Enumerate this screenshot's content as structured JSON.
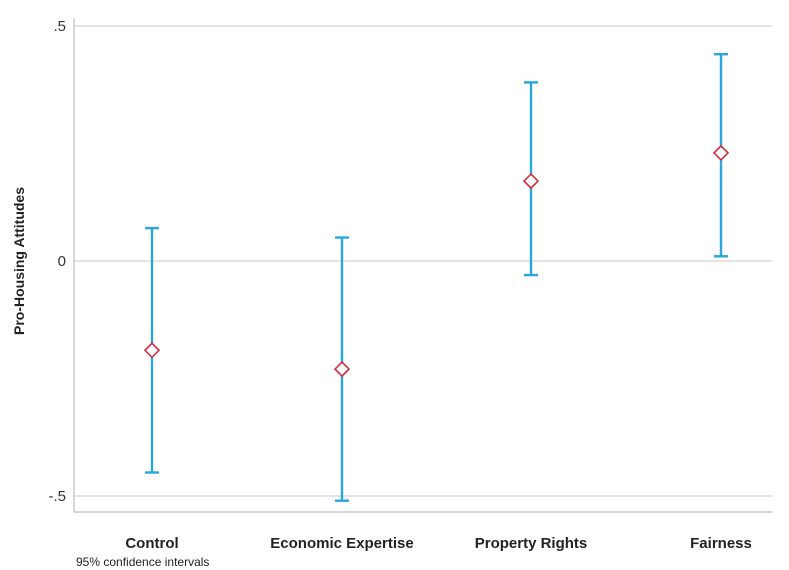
{
  "chart_data": {
    "type": "scatter",
    "subtype": "point estimates with 95% confidence interval error bars",
    "categories": [
      "Control",
      "Economic Expertise",
      "Property Rights",
      "Fairness"
    ],
    "estimates": [
      -0.19,
      -0.23,
      0.17,
      0.23
    ],
    "ci_lower": [
      -0.45,
      -0.51,
      -0.03,
      0.01
    ],
    "ci_upper": [
      0.07,
      0.05,
      0.38,
      0.44
    ],
    "ylabel": "Pro-Housing Attitudes",
    "xlabel": "",
    "yticks": [
      0.5,
      0,
      -0.5
    ],
    "ytick_labels": [
      ".5",
      "0",
      "-.5"
    ],
    "ylim": [
      -0.53,
      0.53
    ],
    "grid": "horizontal at ticks",
    "legend": "none",
    "note": "95% confidence intervals",
    "colors": {
      "error_bar": "#29a7dd",
      "marker": "#d22c3c",
      "grid": "#d4d4d4",
      "axis": "#bdbdbd"
    }
  }
}
